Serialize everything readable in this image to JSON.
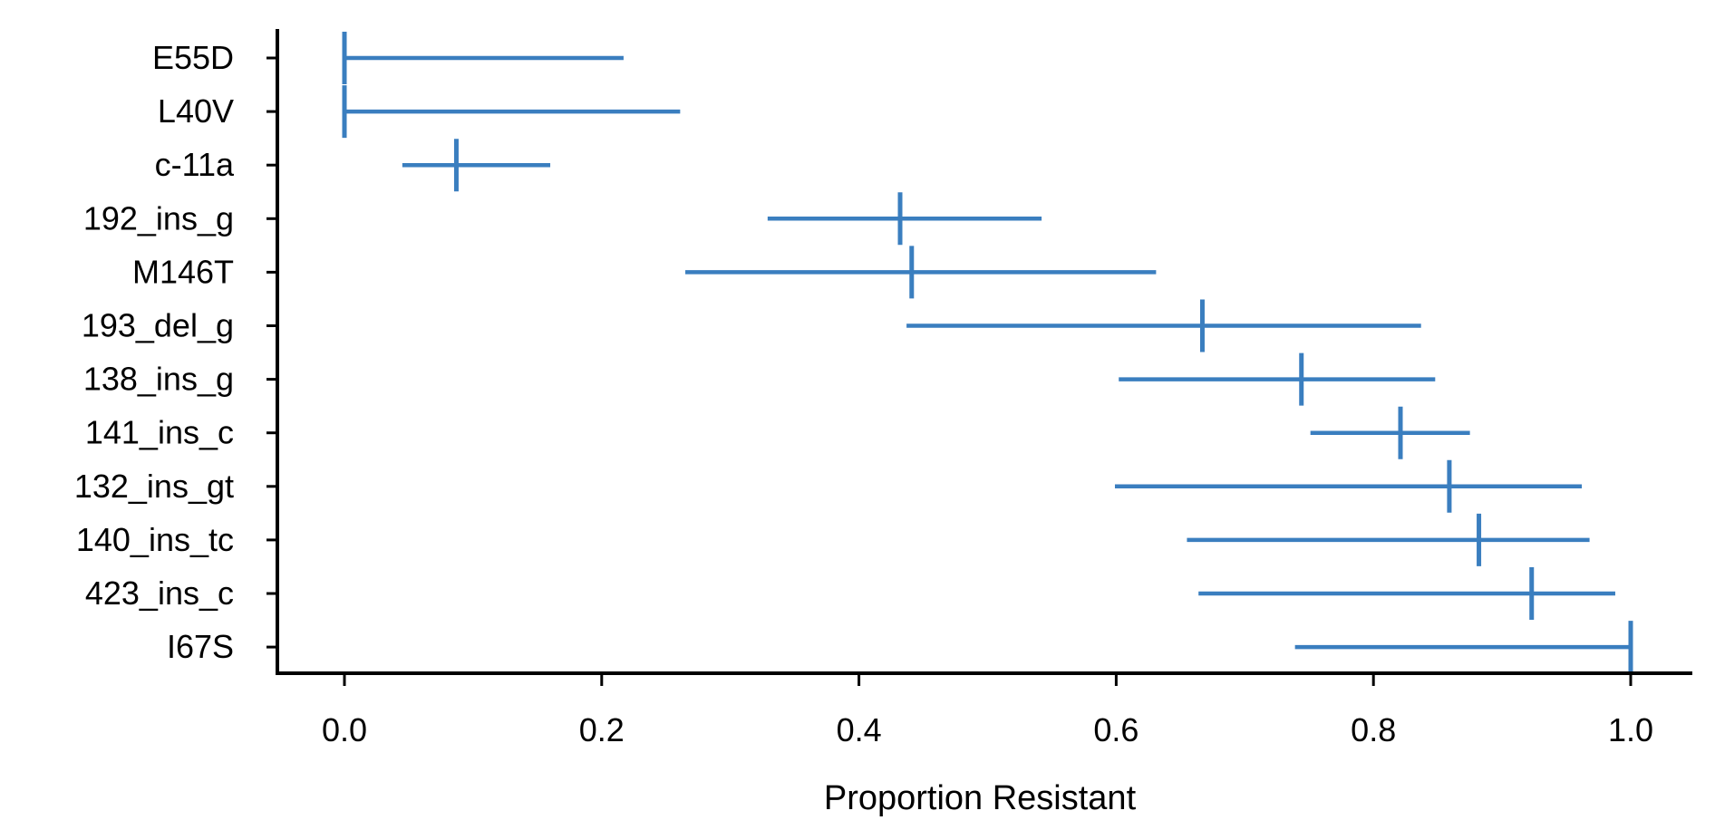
{
  "chart_data": {
    "type": "forest",
    "xlabel": "Proportion Resistant",
    "ylabel": "",
    "title": "",
    "xlim": [
      -0.05,
      1.05
    ],
    "xticks": [
      0.0,
      0.2,
      0.4,
      0.6,
      0.8,
      1.0
    ],
    "xtick_labels": [
      "0.0",
      "0.2",
      "0.4",
      "0.6",
      "0.8",
      "1.0"
    ],
    "grid": false,
    "color": "#3a7ebf",
    "categories": [
      "E55D",
      "L40V",
      "c-11a",
      "192_ins_g",
      "M146T",
      "193_del_g",
      "138_ins_g",
      "141_ins_c",
      "132_ins_gt",
      "140_ins_tc",
      "423_ins_c",
      "I67S"
    ],
    "points": [
      {
        "label": "E55D",
        "value": 0.0,
        "lower": 0.0,
        "upper": 0.217
      },
      {
        "label": "L40V",
        "value": 0.0,
        "lower": 0.0,
        "upper": 0.261
      },
      {
        "label": "c-11a",
        "value": 0.087,
        "lower": 0.045,
        "upper": 0.16
      },
      {
        "label": "192_ins_g",
        "value": 0.432,
        "lower": 0.329,
        "upper": 0.542
      },
      {
        "label": "M146T",
        "value": 0.441,
        "lower": 0.265,
        "upper": 0.631
      },
      {
        "label": "193_del_g",
        "value": 0.667,
        "lower": 0.437,
        "upper": 0.837
      },
      {
        "label": "138_ins_g",
        "value": 0.744,
        "lower": 0.602,
        "upper": 0.848
      },
      {
        "label": "141_ins_c",
        "value": 0.821,
        "lower": 0.751,
        "upper": 0.875
      },
      {
        "label": "132_ins_gt",
        "value": 0.859,
        "lower": 0.599,
        "upper": 0.962
      },
      {
        "label": "140_ins_tc",
        "value": 0.882,
        "lower": 0.655,
        "upper": 0.968
      },
      {
        "label": "423_ins_c",
        "value": 0.923,
        "lower": 0.664,
        "upper": 0.988
      },
      {
        "label": "I67S",
        "value": 1.0,
        "lower": 0.739,
        "upper": 1.0
      }
    ]
  }
}
